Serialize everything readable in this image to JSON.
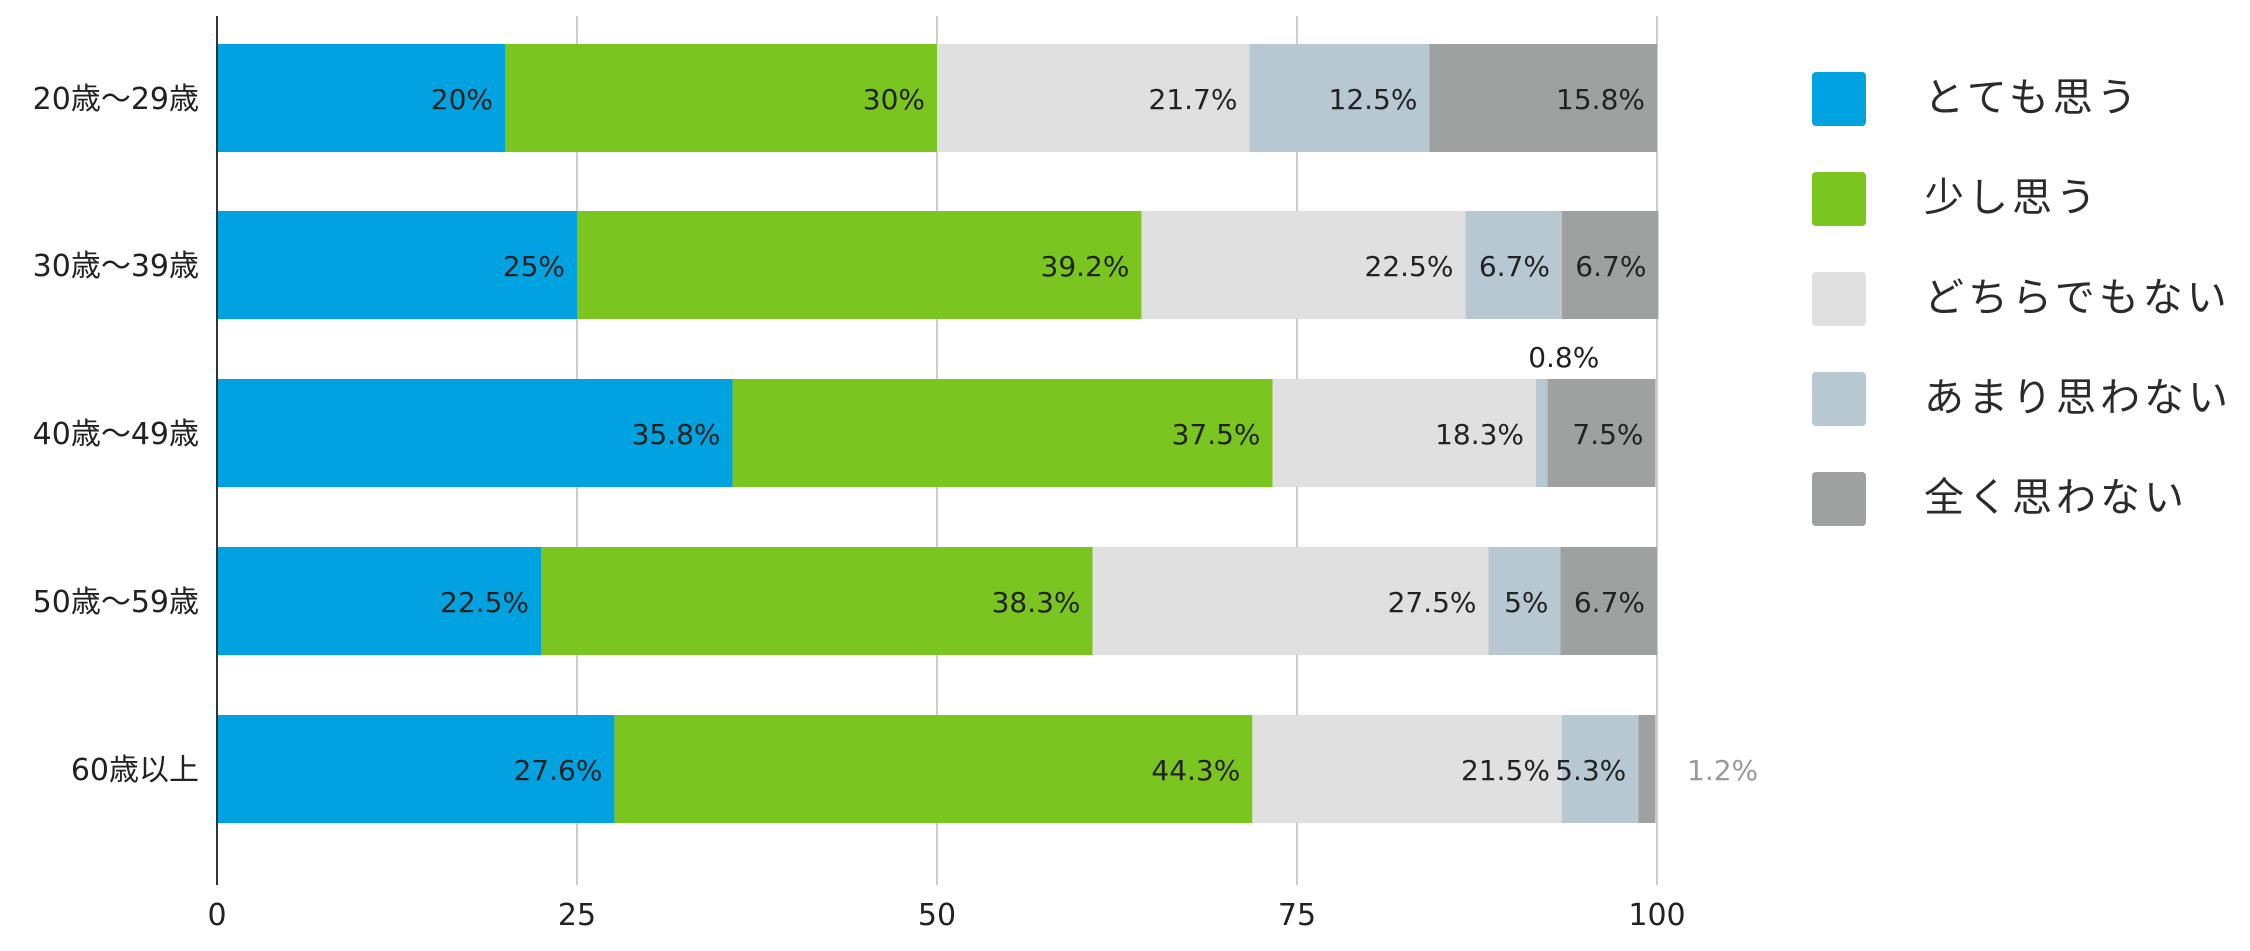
{
  "colors": {
    "background": "#ffffff",
    "grid": "#cccccc",
    "axis": "#333333",
    "label_text": "#222222",
    "outside_label_text": "#999999"
  },
  "chart_data": {
    "type": "bar",
    "orientation": "horizontal",
    "stacked": true,
    "title": "",
    "xlabel": "",
    "ylabel": "",
    "xlim": [
      0,
      100
    ],
    "x_ticks": [
      0,
      25,
      50,
      75,
      100
    ],
    "grid": true,
    "legend_position": "right",
    "categories": [
      "20歳〜29歳",
      "30歳〜39歳",
      "40歳〜49歳",
      "50歳〜59歳",
      "60歳以上"
    ],
    "series": [
      {
        "name": "とても思う",
        "color": "#00a3e0",
        "values": [
          20,
          25,
          35.8,
          22.5,
          27.6
        ],
        "labels": [
          "20%",
          "25%",
          "35.8%",
          "22.5%",
          "27.6%"
        ]
      },
      {
        "name": "少し思う",
        "color": "#7ac520",
        "values": [
          30,
          39.2,
          37.5,
          38.3,
          44.3
        ],
        "labels": [
          "30%",
          "39.2%",
          "37.5%",
          "38.3%",
          "44.3%"
        ]
      },
      {
        "name": "どちらでもない",
        "color": "#e0e0e0",
        "values": [
          21.7,
          22.5,
          18.3,
          27.5,
          21.5
        ],
        "labels": [
          "21.7%",
          "22.5%",
          "18.3%",
          "27.5%",
          "21.5%"
        ]
      },
      {
        "name": "あまり思わない",
        "color": "#b8c8d2",
        "values": [
          12.5,
          6.7,
          0.8,
          5,
          5.3
        ],
        "labels": [
          "12.5%",
          "6.7%",
          "0.8%",
          "5%",
          "5.3%"
        ]
      },
      {
        "name": "全く思わない",
        "color": "#9fa0a0",
        "values": [
          15.8,
          6.7,
          7.5,
          6.7,
          1.2
        ],
        "labels": [
          "15.8%",
          "6.7%",
          "7.5%",
          "6.7%",
          "1.2%"
        ]
      }
    ]
  }
}
